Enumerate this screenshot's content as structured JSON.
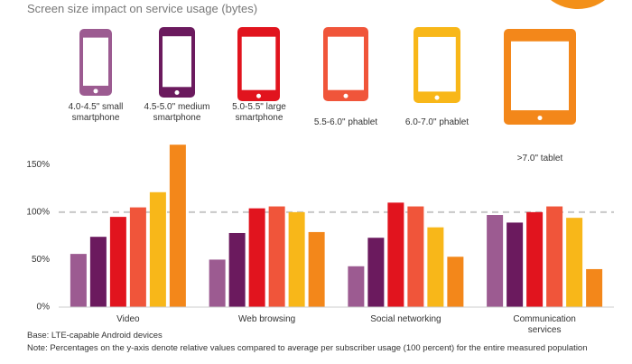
{
  "chart_data": {
    "type": "bar",
    "title": "Screen size impact on service usage (bytes)",
    "categories": [
      "Video",
      "Web browsing",
      "Social networking",
      "Communication services"
    ],
    "series": [
      {
        "name": "4.0-4.5\" small smartphone",
        "color": "#9c5b91",
        "values": [
          56,
          50,
          43,
          97
        ]
      },
      {
        "name": "4.5-5.0\" medium smartphone",
        "color": "#6b1a5e",
        "values": [
          74,
          78,
          73,
          89
        ]
      },
      {
        "name": "5.0-5.5\" large smartphone",
        "color": "#e1141e",
        "values": [
          95,
          104,
          110,
          100
        ]
      },
      {
        "name": "5.5-6.0\" phablet",
        "color": "#f0553a",
        "values": [
          105,
          106,
          106,
          106
        ]
      },
      {
        "name": "6.0-7.0\" phablet",
        "color": "#f8b719",
        "values": [
          121,
          100,
          84,
          94
        ]
      },
      {
        "name": ">7.0\" tablet",
        "color": "#f3871a",
        "values": [
          171,
          79,
          53,
          40
        ]
      }
    ],
    "ylim": [
      0,
      175
    ],
    "yticks": [
      {
        "value": 0,
        "label": "0%"
      },
      {
        "value": 50,
        "label": "50%"
      },
      {
        "value": 100,
        "label": "100%"
      },
      {
        "value": 150,
        "label": "150%"
      }
    ],
    "reference_line": 100,
    "notes": [
      "Base: LTE-capable Android devices",
      "Note: Percentages on the y-axis denote relative values compared to average per subscriber usage (100 percent) for the entire measured population"
    ]
  }
}
